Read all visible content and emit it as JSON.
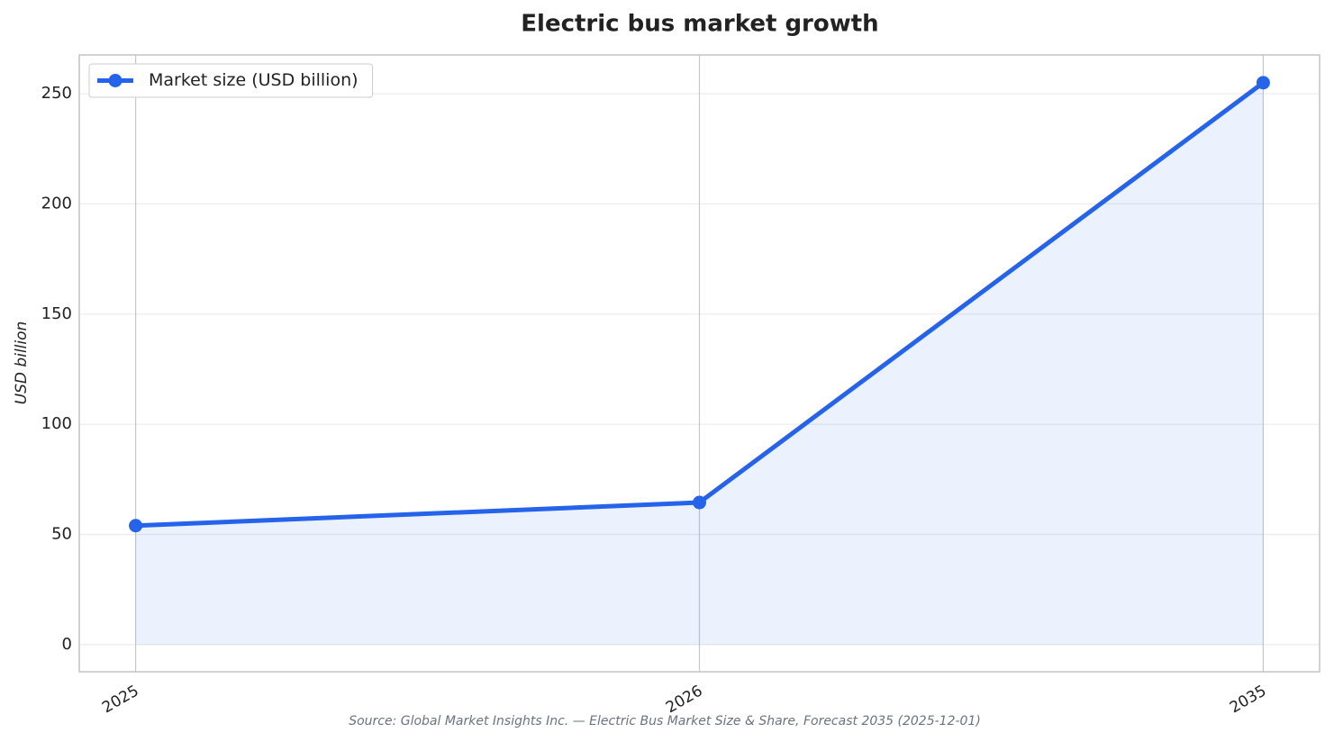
{
  "chart_data": {
    "type": "line",
    "title": "Electric bus market growth",
    "ylabel": "USD billion",
    "source": "Source: Global Market Insights Inc. — Electric Bus Market Size & Share, Forecast 2035 (2025-12-01)",
    "categories": [
      "2025",
      "2026",
      "2035"
    ],
    "series": [
      {
        "name": "Market size (USD billion)",
        "color": "#2563eb",
        "values": [
          54,
          64.5,
          255
        ]
      }
    ],
    "ylim": [
      -12.3,
      267.6
    ],
    "yticks": [
      0,
      50,
      100,
      150,
      200,
      250
    ],
    "grid": true,
    "area": true,
    "legend": "upper left"
  }
}
